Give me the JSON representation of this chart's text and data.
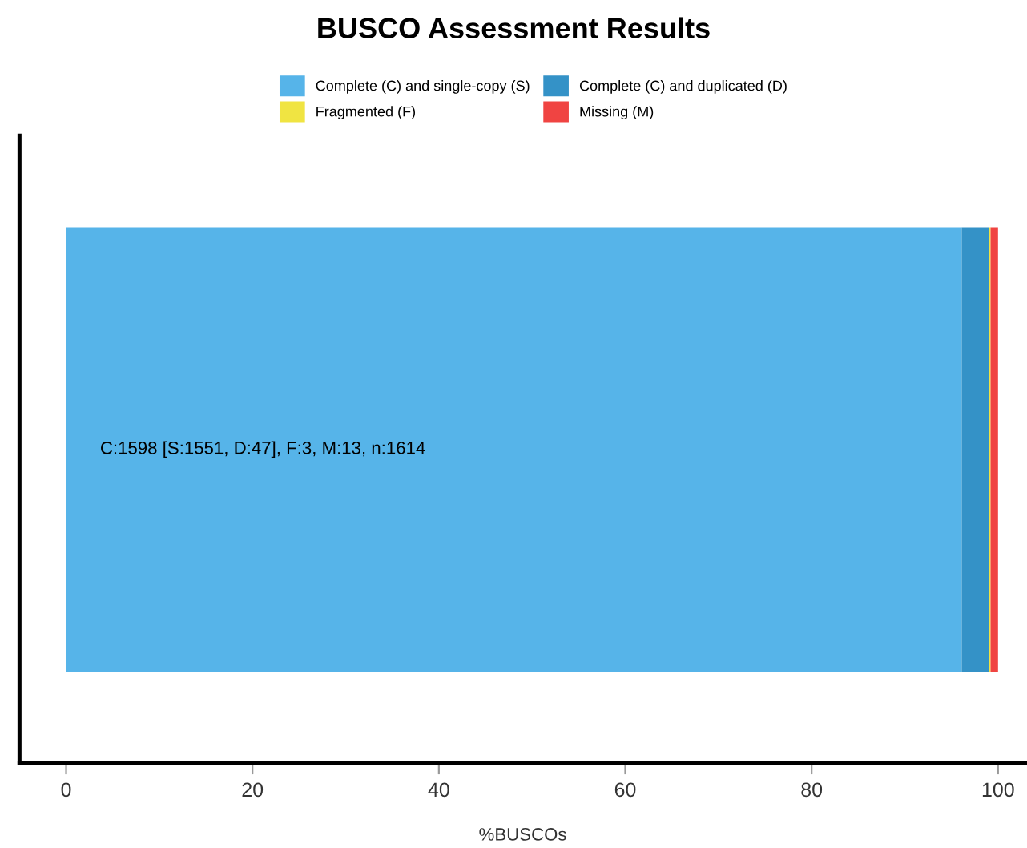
{
  "chart_data": {
    "type": "bar",
    "title": "BUSCO Assessment Results",
    "xlabel": "%BUSCOs",
    "orientation": "horizontal",
    "stacked": true,
    "categories": [
      null
    ],
    "series": [
      {
        "name": "Complete (C) and single-copy (S)",
        "color": "#56b4e9",
        "values": [
          96.1
        ]
      },
      {
        "name": "Complete (C) and duplicated (D)",
        "color": "#3492c7",
        "values": [
          2.9
        ]
      },
      {
        "name": "Fragmented (F)",
        "color": "#f0e442",
        "values": [
          0.2
        ]
      },
      {
        "name": "Missing (M)",
        "color": "#f04442",
        "values": [
          0.8
        ]
      }
    ],
    "annotations": [
      "C:1598 [S:1551, D:47], F:3, M:13, n:1614"
    ],
    "xlim": [
      -5,
      103
    ],
    "xticks": [
      0,
      20,
      40,
      60,
      80,
      100
    ],
    "legend": "top",
    "grid": false,
    "tick_labels": "x"
  }
}
